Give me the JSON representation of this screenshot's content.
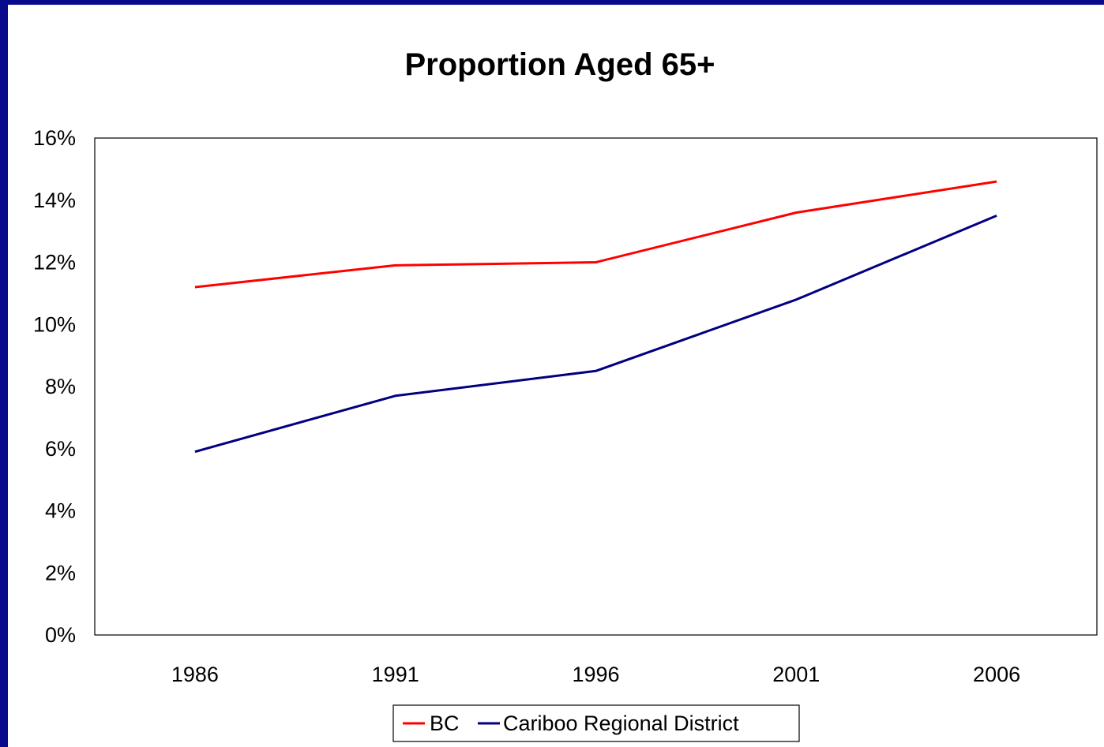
{
  "colors": {
    "frame": "#0a0a8c",
    "background": "#ffffff"
  },
  "chart_data": {
    "type": "line",
    "title": "Proportion Aged 65+",
    "xlabel": "",
    "ylabel": "",
    "categories": [
      "1986",
      "1991",
      "1996",
      "2001",
      "2006"
    ],
    "ylim": [
      0,
      16
    ],
    "y_ticks": [
      "0%",
      "2%",
      "4%",
      "6%",
      "8%",
      "10%",
      "12%",
      "14%",
      "16%"
    ],
    "grid": false,
    "legend_position": "bottom",
    "series": [
      {
        "name": "BC",
        "color": "#ff0000",
        "values": [
          11.2,
          11.9,
          12.0,
          13.6,
          14.6
        ]
      },
      {
        "name": "Cariboo Regional District",
        "color": "#000080",
        "values": [
          5.9,
          7.7,
          8.5,
          10.8,
          13.5
        ]
      }
    ]
  }
}
